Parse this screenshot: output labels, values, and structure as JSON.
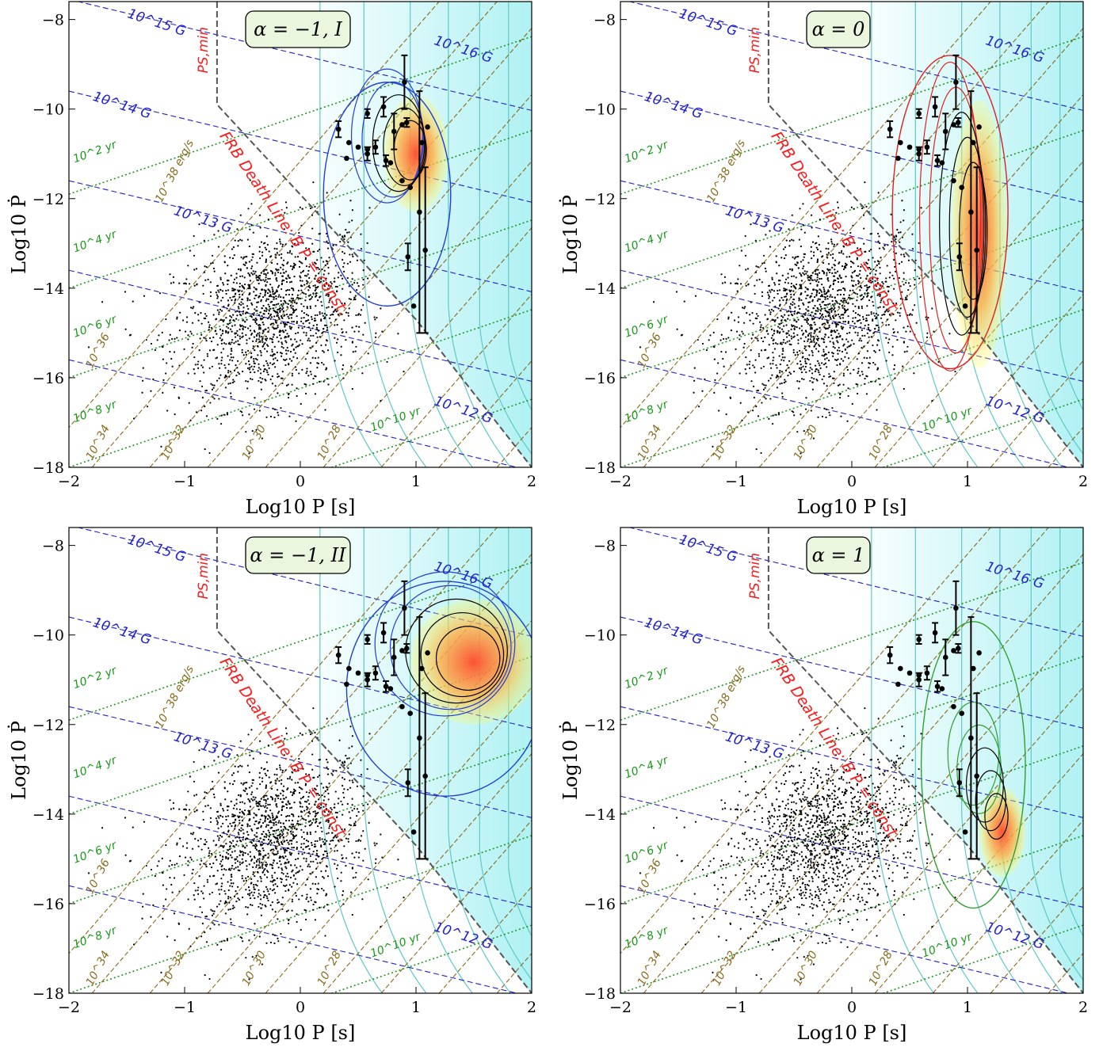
{
  "colors": {
    "b_field_lines": "#1f1fd0",
    "age_lines": "#1a9a1a",
    "luminosity_lines": "#8a6a1a",
    "death_line": "#ff1a1a",
    "psmin_line": "#555555",
    "shade": "#6fe6ea",
    "heat_low": "#ffff66",
    "heat_high": "#ff4a2a",
    "contour_dark": "#000000",
    "contour_blue": "#1f3fd8",
    "contour_red": "#e02020",
    "contour_green": "#30a030",
    "badge_fill": "#eaf7de"
  },
  "chart_data": [
    {
      "type": "scatter",
      "panel": "top-left",
      "badge": "α = −1, I",
      "xlabel": "Log10 P [s]",
      "ylabel": "Log10 Ṗ",
      "xlim": [
        -2,
        2
      ],
      "ylim": [
        -18,
        -7.6
      ],
      "xticks": [
        "−2",
        "−1",
        "0",
        "1",
        "2"
      ],
      "yticks": [
        "−8",
        "−10",
        "−12",
        "−14",
        "−16",
        "−18"
      ],
      "outer_contour": "blue",
      "density_peak": {
        "x": 1.0,
        "y": -11.0
      },
      "annotations": {
        "psmin": "PS,min",
        "death_line": "FRB Death Line: B P = const.",
        "b_field": [
          "10^15 G",
          "10^16 G",
          "10^14 G",
          "10^13 G",
          "10^12 G"
        ],
        "age": [
          "10^2 yr",
          "10^4 yr",
          "10^6 yr",
          "10^8 yr",
          "10^10 yr"
        ],
        "luminosity": [
          "10^38 erg/s",
          "10^36",
          "10^34",
          "10^32",
          "10^30",
          "10^28"
        ]
      }
    },
    {
      "type": "scatter",
      "panel": "top-right",
      "badge": "α = 0",
      "xlabel": "Log10 P [s]",
      "ylabel": "Log10 Ṗ",
      "xlim": [
        -2,
        2
      ],
      "ylim": [
        -18,
        -7.6
      ],
      "xticks": [
        "−2",
        "−1",
        "0",
        "1",
        "2"
      ],
      "yticks": [
        "−8",
        "−10",
        "−12",
        "−14",
        "−16",
        "−18"
      ],
      "outer_contour": "red",
      "density_peak": {
        "x": 1.1,
        "y": -12.8
      },
      "annotations": {
        "psmin": "PS,min",
        "death_line": "FRB Death Line: B P = const.",
        "b_field": [
          "10^15 G",
          "10^16 G",
          "10^14 G",
          "10^13 G",
          "10^12 G"
        ],
        "age": [
          "10^2 yr",
          "10^4 yr",
          "10^6 yr",
          "10^8 yr",
          "10^10 yr"
        ],
        "luminosity": [
          "10^38 erg/s",
          "10^36",
          "10^34",
          "10^32",
          "10^30",
          "10^28"
        ]
      }
    },
    {
      "type": "scatter",
      "panel": "bottom-left",
      "badge": "α = −1, II",
      "xlabel": "Log10 P [s]",
      "ylabel": "Log10 Ṗ",
      "xlim": [
        -2,
        2
      ],
      "ylim": [
        -18,
        -7.6
      ],
      "xticks": [
        "−2",
        "−1",
        "0",
        "1",
        "2"
      ],
      "yticks": [
        "−8",
        "−10",
        "−12",
        "−14",
        "−16",
        "−18"
      ],
      "outer_contour": "blue",
      "density_peak": {
        "x": 1.5,
        "y": -10.6
      },
      "annotations": {
        "psmin": "PS,min",
        "death_line": "FRB Death Line: B P = const.",
        "b_field": [
          "10^15 G",
          "10^16 G",
          "10^14 G",
          "10^13 G",
          "10^12 G"
        ],
        "age": [
          "10^2 yr",
          "10^4 yr",
          "10^6 yr",
          "10^8 yr",
          "10^10 yr"
        ],
        "luminosity": [
          "10^38 erg/s",
          "10^36",
          "10^34",
          "10^32",
          "10^30",
          "10^28"
        ]
      }
    },
    {
      "type": "scatter",
      "panel": "bottom-right",
      "badge": "α = 1",
      "xlabel": "Log10 P [s]",
      "ylabel": "Log10 Ṗ",
      "xlim": [
        -2,
        2
      ],
      "ylim": [
        -18,
        -7.6
      ],
      "xticks": [
        "−2",
        "−1",
        "0",
        "1",
        "2"
      ],
      "yticks": [
        "−8",
        "−10",
        "−12",
        "−14",
        "−16",
        "−18"
      ],
      "outer_contour": "green",
      "density_peak": {
        "x": 1.3,
        "y": -14.4
      },
      "annotations": {
        "psmin": "PS,min",
        "death_line": "FRB Death Line: B P = const.",
        "b_field": [
          "10^15 G",
          "10^16 G",
          "10^14 G",
          "10^13 G",
          "10^12 G"
        ],
        "age": [
          "10^2 yr",
          "10^4 yr",
          "10^6 yr",
          "10^8 yr",
          "10^10 yr"
        ],
        "luminosity": [
          "10^38 erg/s",
          "10^36",
          "10^34",
          "10^32",
          "10^30",
          "10^28"
        ]
      }
    }
  ],
  "magnetars": [
    {
      "x": 0.33,
      "y": -10.45,
      "err": 0.18
    },
    {
      "x": 0.42,
      "y": -10.75
    },
    {
      "x": 0.4,
      "y": -11.1
    },
    {
      "x": 0.5,
      "y": -10.85
    },
    {
      "x": 0.58,
      "y": -10.1,
      "err": 0.1
    },
    {
      "x": 0.58,
      "y": -10.9
    },
    {
      "x": 0.58,
      "y": -11.0,
      "err": 0.15
    },
    {
      "x": 0.65,
      "y": -10.85,
      "err": 0.15
    },
    {
      "x": 0.72,
      "y": -9.95,
      "err": 0.22
    },
    {
      "x": 0.74,
      "y": -11.15,
      "err": 0.12
    },
    {
      "x": 0.78,
      "y": -11.2
    },
    {
      "x": 0.81,
      "y": -10.5,
      "err": 0.4
    },
    {
      "x": 0.88,
      "y": -10.35
    },
    {
      "x": 0.88,
      "y": -11.6
    },
    {
      "x": 0.9,
      "y": -9.4,
      "err": 0.6
    },
    {
      "x": 0.92,
      "y": -10.3,
      "err": 0.1
    },
    {
      "x": 0.93,
      "y": -13.3,
      "err": 0.3
    },
    {
      "x": 0.95,
      "y": -11.75
    },
    {
      "x": 0.98,
      "y": -14.4
    },
    {
      "x": 1.03,
      "y": -12.3,
      "err": 2.7
    },
    {
      "x": 1.05,
      "y": -10.75
    },
    {
      "x": 1.08,
      "y": -13.15,
      "err": 1.85
    },
    {
      "x": 1.1,
      "y": -10.4
    }
  ]
}
